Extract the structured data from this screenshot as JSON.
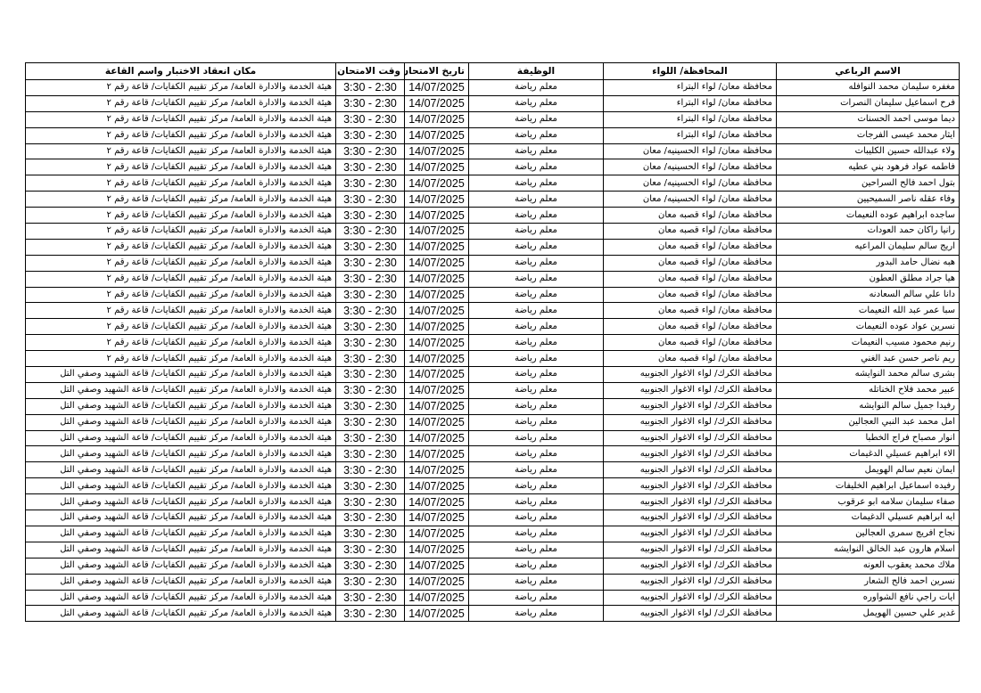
{
  "table": {
    "headers": [
      "الاسم الرباعي",
      "المحافظة/ اللواء",
      "الوظيفة",
      "تاريخ الامتحان",
      "وقت الامتحان",
      "مكان انعقاد الاختبار واسم القاعة"
    ],
    "rows": [
      [
        "مغفره سليمان محمد النوافله",
        "محافظة معان/ لواء البتراء",
        "معلم رياضة",
        "14/07/2025",
        "3:30 - 2:30",
        "هيئة الخدمة والادارة العامة/ مركز تقييم الكفايات/ قاعة رقم ٢"
      ],
      [
        "فرح اسماعيل سليمان النصرات",
        "محافظة معان/ لواء البتراء",
        "معلم رياضة",
        "14/07/2025",
        "3:30 - 2:30",
        "هيئة الخدمة والادارة العامة/ مركز تقييم الكفايات/ قاعة رقم ٢"
      ],
      [
        "ديما موسى احمد الحسنات",
        "محافظة معان/ لواء البتراء",
        "معلم رياضة",
        "14/07/2025",
        "3:30 - 2:30",
        "هيئة الخدمة والادارة العامة/ مركز تقييم الكفايات/ قاعة رقم ٢"
      ],
      [
        "ايثار محمد عيسى الفرجات",
        "محافظة معان/ لواء البتراء",
        "معلم رياضة",
        "14/07/2025",
        "3:30 - 2:30",
        "هيئة الخدمة والادارة العامة/ مركز تقييم الكفايات/ قاعة رقم ٢"
      ],
      [
        "ولاء عبدالله حسين الكليبات",
        "محافظة معان/ لواء الحسينيه/ معان",
        "معلم رياضة",
        "14/07/2025",
        "3:30 - 2:30",
        "هيئة الخدمة والادارة العامة/ مركز تقييم الكفايات/ قاعة رقم ٢"
      ],
      [
        "فاطمه عواد فرهود بني عطيه",
        "محافظة معان/ لواء الحسينيه/ معان",
        "معلم رياضة",
        "14/07/2025",
        "3:30 - 2:30",
        "هيئة الخدمة والادارة العامة/ مركز تقييم الكفايات/ قاعة رقم ٢"
      ],
      [
        "بتول احمد فالح السراحين",
        "محافظة معان/ لواء الحسينيه/ معان",
        "معلم رياضة",
        "14/07/2025",
        "3:30 - 2:30",
        "هيئة الخدمة والادارة العامة/ مركز تقييم الكفايات/ قاعة رقم ٢"
      ],
      [
        "وفاء عقله ناصر السميحيين",
        "محافظة معان/ لواء الحسينيه/ معان",
        "معلم رياضة",
        "14/07/2025",
        "3:30 - 2:30",
        "هيئة الخدمة والادارة العامة/ مركز تقييم الكفايات/ قاعة رقم ٢"
      ],
      [
        "ساجده ابراهيم عوده النعيمات",
        "محافظة معان/ لواء قصبه معان",
        "معلم رياضة",
        "14/07/2025",
        "3:30 - 2:30",
        "هيئة الخدمة والادارة العامة/ مركز تقييم الكفايات/ قاعة رقم ٢"
      ],
      [
        "رانيا راكان حمد العودات",
        "محافظة معان/ لواء قصبه معان",
        "معلم رياضة",
        "14/07/2025",
        "3:30 - 2:30",
        "هيئة الخدمة والادارة العامة/ مركز تقييم الكفايات/ قاعة رقم ٢"
      ],
      [
        "اريج سالم سليمان المراعيه",
        "محافظة معان/ لواء قصبه معان",
        "معلم رياضة",
        "14/07/2025",
        "3:30 - 2:30",
        "هيئة الخدمة والادارة العامة/ مركز تقييم الكفايات/ قاعة رقم ٢"
      ],
      [
        "هبه نضال حامد البدور",
        "محافظة معان/ لواء قصبه معان",
        "معلم رياضة",
        "14/07/2025",
        "3:30 - 2:30",
        "هيئة الخدمة والادارة العامة/ مركز تقييم الكفايات/ قاعة رقم ٢"
      ],
      [
        "هيا جراد مطلق العطون",
        "محافظة معان/ لواء قصبه معان",
        "معلم رياضة",
        "14/07/2025",
        "3:30 - 2:30",
        "هيئة الخدمة والادارة العامة/ مركز تقييم الكفايات/ قاعة رقم ٢"
      ],
      [
        "دانا علي سالم السعادنه",
        "محافظة معان/ لواء قصبه معان",
        "معلم رياضة",
        "14/07/2025",
        "3:30 - 2:30",
        "هيئة الخدمة والادارة العامة/ مركز تقييم الكفايات/ قاعة رقم ٢"
      ],
      [
        "سبا عمر عبد الله النعيمات",
        "محافظة معان/ لواء قصبه معان",
        "معلم رياضة",
        "14/07/2025",
        "3:30 - 2:30",
        "هيئة الخدمة والادارة العامة/ مركز تقييم الكفايات/ قاعة رقم ٢"
      ],
      [
        "نسرين عواد عوده النعيمات",
        "محافظة معان/ لواء قصبه معان",
        "معلم رياضة",
        "14/07/2025",
        "3:30 - 2:30",
        "هيئة الخدمة والادارة العامة/ مركز تقييم الكفايات/ قاعة رقم ٢"
      ],
      [
        "رنيم محمود مسيب النعيمات",
        "محافظة معان/ لواء قصبه معان",
        "معلم رياضة",
        "14/07/2025",
        "3:30 - 2:30",
        "هيئة الخدمة والادارة العامة/ مركز تقييم الكفايات/ قاعة رقم ٢"
      ],
      [
        "ريم ناصر حسن عبد الغني",
        "محافظة معان/ لواء قصبه معان",
        "معلم رياضة",
        "14/07/2025",
        "3:30 - 2:30",
        "هيئة الخدمة والادارة العامة/ مركز تقييم الكفايات/ قاعة رقم ٢"
      ],
      [
        "بشرى سالم محمد النوايشه",
        "محافظة الكرك/ لواء الاغوار الجنوبيه",
        "معلم رياضة",
        "14/07/2025",
        "3:30 - 2:30",
        "هيئة الخدمة والادارة العامة/ مركز تقييم الكفايات/ قاعة الشهيد وصفي التل"
      ],
      [
        "عبير محمد فلاح الخناتله",
        "محافظة الكرك/ لواء الاغوار الجنوبيه",
        "معلم رياضة",
        "14/07/2025",
        "3:30 - 2:30",
        "هيئة الخدمة والادارة العامة/ مركز تقييم الكفايات/ قاعة الشهيد وصفي التل"
      ],
      [
        "رفيدا جميل سالم النوايشه",
        "محافظة الكرك/ لواء الاغوار الجنوبيه",
        "معلم رياضة",
        "14/07/2025",
        "3:30 - 2:30",
        "هيئة الخدمة والادارة العامة/ مركز تقييم الكفايات/ قاعة الشهيد وصفي التل"
      ],
      [
        "امل محمد عبد النبي العجالين",
        "محافظة الكرك/ لواء الاغوار الجنوبيه",
        "معلم رياضة",
        "14/07/2025",
        "3:30 - 2:30",
        "هيئة الخدمة والادارة العامة/ مركز تقييم الكفايات/ قاعة الشهيد وصفي التل"
      ],
      [
        "انوار مصباح فراج الخطبا",
        "محافظة الكرك/ لواء الاغوار الجنوبيه",
        "معلم رياضة",
        "14/07/2025",
        "3:30 - 2:30",
        "هيئة الخدمة والادارة العامة/ مركز تقييم الكفايات/ قاعة الشهيد وصفي التل"
      ],
      [
        "الاء ابراهيم عسيلي الدغيمات",
        "محافظة الكرك/ لواء الاغوار الجنوبيه",
        "معلم رياضة",
        "14/07/2025",
        "3:30 - 2:30",
        "هيئة الخدمة والادارة العامة/ مركز تقييم الكفايات/ قاعة الشهيد وصفي التل"
      ],
      [
        "ايمان نعيم سالم الهويمل",
        "محافظة الكرك/ لواء الاغوار الجنوبيه",
        "معلم رياضة",
        "14/07/2025",
        "3:30 - 2:30",
        "هيئة الخدمة والادارة العامة/ مركز تقييم الكفايات/ قاعة الشهيد وصفي التل"
      ],
      [
        "رفيده اسماعيل ابراهيم الخليفات",
        "محافظة الكرك/ لواء الاغوار الجنوبيه",
        "معلم رياضة",
        "14/07/2025",
        "3:30 - 2:30",
        "هيئة الخدمة والادارة العامة/ مركز تقييم الكفايات/ قاعة الشهيد وصفي التل"
      ],
      [
        "صفاء سليمان سلامه ابو عرقوب",
        "محافظة الكرك/ لواء الاغوار الجنوبيه",
        "معلم رياضة",
        "14/07/2025",
        "3:30 - 2:30",
        "هيئة الخدمة والادارة العامة/ مركز تقييم الكفايات/ قاعة الشهيد وصفي التل"
      ],
      [
        "ايه ابراهيم عسيلي الدغيمات",
        "محافظة الكرك/ لواء الاغوار الجنوبيه",
        "معلم رياضة",
        "14/07/2025",
        "3:30 - 2:30",
        "هيئة الخدمة والادارة العامة/ مركز تقييم الكفايات/ قاعة الشهيد وصفي التل"
      ],
      [
        "نجاح افريج سمري العجالين",
        "محافظة الكرك/ لواء الاغوار الجنوبيه",
        "معلم رياضة",
        "14/07/2025",
        "3:30 - 2:30",
        "هيئة الخدمة والادارة العامة/ مركز تقييم الكفايات/ قاعة الشهيد وصفي التل"
      ],
      [
        "اسلام هارون عبد الخالق النوايشه",
        "محافظة الكرك/ لواء الاغوار الجنوبيه",
        "معلم رياضة",
        "14/07/2025",
        "3:30 - 2:30",
        "هيئة الخدمة والادارة العامة/ مركز تقييم الكفايات/ قاعة الشهيد وصفي التل"
      ],
      [
        "ملاك محمد يعقوب العونه",
        "محافظة الكرك/ لواء الاغوار الجنوبيه",
        "معلم رياضة",
        "14/07/2025",
        "3:30 - 2:30",
        "هيئة الخدمة والادارة العامة/ مركز تقييم الكفايات/ قاعة الشهيد وصفي التل"
      ],
      [
        "نسرين احمد فالح الشعار",
        "محافظة الكرك/ لواء الاغوار الجنوبيه",
        "معلم رياضة",
        "14/07/2025",
        "3:30 - 2:30",
        "هيئة الخدمة والادارة العامة/ مركز تقييم الكفايات/ قاعة الشهيد وصفي التل"
      ],
      [
        "ايات راجي نافع الشواوره",
        "محافظة الكرك/ لواء الاغوار الجنوبيه",
        "معلم رياضة",
        "14/07/2025",
        "3:30 - 2:30",
        "هيئة الخدمة والادارة العامة/ مركز تقييم الكفايات/ قاعة الشهيد وصفي التل"
      ],
      [
        "غدير علي حسين الهويمل",
        "محافظة الكرك/ لواء الاغوار الجنوبيه",
        "معلم رياضة",
        "14/07/2025",
        "3:30 - 2:30",
        "هيئة الخدمة والادارة العامة/ مركز تقييم الكفايات/ قاعة الشهيد وصفي التل"
      ]
    ]
  }
}
